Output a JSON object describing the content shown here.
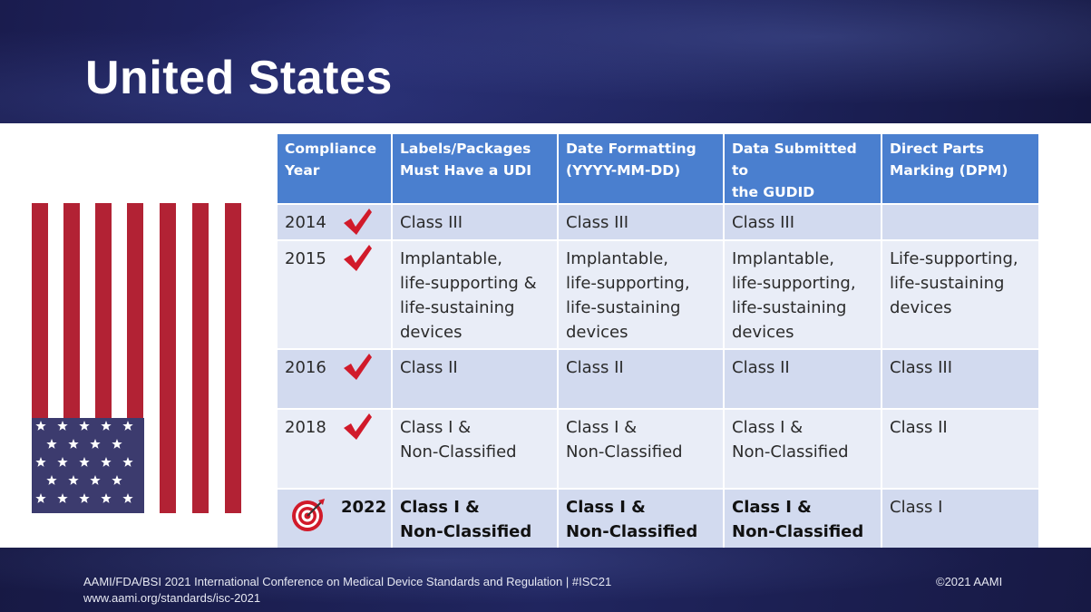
{
  "slide": {
    "title": "United States",
    "footer_line1": "AAMI/FDA/BSI 2021 International Conference on Medical Device Standards and Regulation  |  #ISC21",
    "footer_line2": "www.aami.org/standards/isc-2021",
    "copyright": "©2021 AAMI"
  },
  "colors": {
    "header_bg": "#23286a",
    "table_header": "#4a7fcf",
    "row_dark": "#d2daef",
    "row_light": "#e9edf7",
    "flag_red": "#b22234",
    "flag_blue": "#3c3b6e",
    "check_red": "#d11a2a"
  },
  "table": {
    "headers": [
      "Compliance\nYear",
      "Labels/Packages\nMust Have a UDI",
      "Date Formatting\n(YYYY-MM-DD)",
      "Data Submitted to\nthe GUDID",
      "Direct Parts\nMarking (DPM)"
    ],
    "rows": [
      {
        "year": "2014",
        "icon": "checkmark-icon",
        "cells": [
          "Class III",
          "Class III",
          "Class III",
          ""
        ]
      },
      {
        "year": "2015",
        "icon": "checkmark-icon",
        "cells": [
          "Implantable,\nlife-supporting &\nlife-sustaining\ndevices",
          "Implantable,\nlife-supporting,\nlife-sustaining\ndevices",
          "Implantable,\nlife-supporting,\nlife-sustaining\ndevices",
          "Life-supporting,\nlife-sustaining\ndevices"
        ]
      },
      {
        "year": "2016",
        "icon": "checkmark-icon",
        "cells": [
          "Class II",
          "Class II",
          "Class II",
          "Class III"
        ]
      },
      {
        "year": "2018",
        "icon": "checkmark-icon",
        "cells": [
          "Class I &\nNon-Classified",
          "Class I &\nNon-Classified",
          "Class I &\nNon-Classified",
          "Class II"
        ]
      },
      {
        "year": "2022",
        "icon": "target-icon",
        "cells": [
          "Class I &\nNon-Classified",
          "Class I &\nNon-Classified",
          "Class I &\nNon-Classified",
          "Class I"
        ]
      }
    ]
  }
}
